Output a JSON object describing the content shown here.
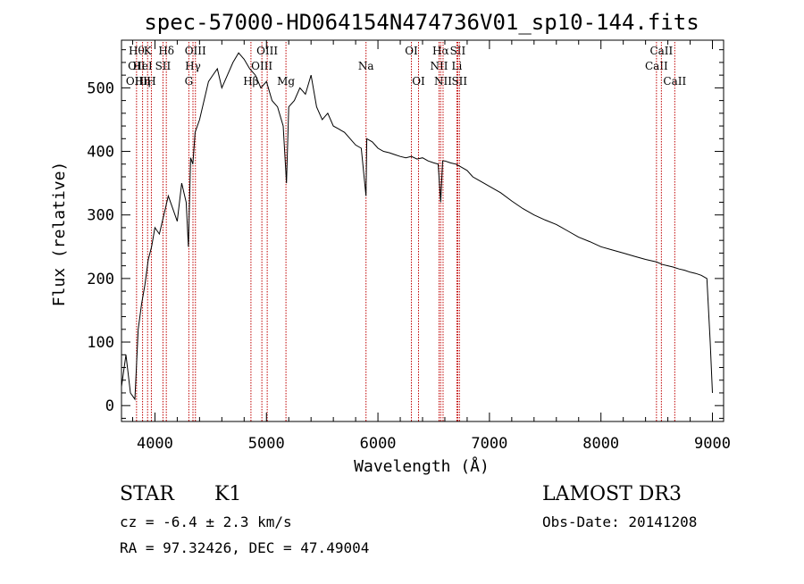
{
  "chart_data": {
    "type": "line",
    "title": "spec-57000-HD064154N474736V01_sp10-144.fits",
    "xlabel": "Wavelength (Å)",
    "ylabel": "Flux (relative)",
    "xlim": [
      3700,
      9100
    ],
    "ylim": [
      -25,
      575
    ],
    "x_ticks": [
      4000,
      5000,
      6000,
      7000,
      8000,
      9000
    ],
    "y_ticks": [
      0,
      100,
      200,
      300,
      400,
      500
    ],
    "x_tick_labels": [
      "4000",
      "5000",
      "6000",
      "7000",
      "8000",
      "9000"
    ],
    "y_tick_labels": [
      "0",
      "100",
      "200",
      "300",
      "400",
      "500"
    ],
    "series": [
      {
        "name": "flux",
        "x": [
          3700,
          3740,
          3780,
          3820,
          3850,
          3880,
          3910,
          3940,
          3970,
          4000,
          4040,
          4080,
          4120,
          4160,
          4200,
          4240,
          4280,
          4300,
          4320,
          4340,
          4360,
          4400,
          4440,
          4480,
          4520,
          4560,
          4600,
          4650,
          4700,
          4750,
          4800,
          4850,
          4900,
          4950,
          5000,
          5050,
          5100,
          5150,
          5180,
          5200,
          5250,
          5300,
          5350,
          5400,
          5450,
          5500,
          5550,
          5600,
          5650,
          5700,
          5750,
          5800,
          5850,
          5893,
          5900,
          5950,
          6000,
          6050,
          6100,
          6150,
          6200,
          6250,
          6300,
          6350,
          6400,
          6450,
          6500,
          6540,
          6563,
          6580,
          6600,
          6650,
          6700,
          6750,
          6800,
          6850,
          6900,
          6950,
          7000,
          7100,
          7200,
          7300,
          7400,
          7500,
          7600,
          7700,
          7800,
          7900,
          8000,
          8100,
          8200,
          8300,
          8400,
          8500,
          8550,
          8600,
          8650,
          8700,
          8750,
          8800,
          8850,
          8900,
          8950,
          8980,
          9000
        ],
        "values": [
          30,
          80,
          20,
          10,
          120,
          160,
          190,
          230,
          250,
          280,
          270,
          300,
          330,
          310,
          290,
          350,
          320,
          250,
          390,
          380,
          430,
          450,
          480,
          510,
          520,
          530,
          500,
          520,
          540,
          555,
          545,
          530,
          520,
          500,
          510,
          480,
          470,
          440,
          350,
          470,
          480,
          500,
          490,
          520,
          470,
          450,
          460,
          440,
          435,
          430,
          420,
          410,
          405,
          330,
          420,
          415,
          405,
          400,
          398,
          395,
          392,
          390,
          392,
          388,
          390,
          385,
          382,
          380,
          320,
          385,
          385,
          382,
          380,
          375,
          370,
          360,
          355,
          350,
          345,
          335,
          322,
          310,
          300,
          292,
          285,
          275,
          265,
          258,
          250,
          245,
          240,
          235,
          230,
          226,
          222,
          220,
          218,
          215,
          213,
          210,
          208,
          205,
          200,
          100,
          20
        ]
      }
    ],
    "reference_lines": [
      {
        "wavelength": 3835,
        "labels": [
          "Hθ",
          "OII",
          "OIII"
        ],
        "rows": [
          1,
          2,
          3
        ]
      },
      {
        "wavelength": 3889,
        "labels": [
          "HeI",
          "Hη"
        ],
        "rows": [
          2,
          3
        ]
      },
      {
        "wavelength": 3934,
        "labels": [
          "K"
        ],
        "rows": [
          1
        ]
      },
      {
        "wavelength": 3968,
        "labels": [
          "H"
        ],
        "rows": [
          3
        ]
      },
      {
        "wavelength": 4072,
        "labels": [
          "SII"
        ],
        "rows": [
          2
        ]
      },
      {
        "wavelength": 4102,
        "labels": [
          "Hδ"
        ],
        "rows": [
          1
        ]
      },
      {
        "wavelength": 4304,
        "labels": [
          "G"
        ],
        "rows": [
          3
        ]
      },
      {
        "wavelength": 4341,
        "labels": [
          "Hγ"
        ],
        "rows": [
          2
        ]
      },
      {
        "wavelength": 4363,
        "labels": [
          "OIII"
        ],
        "rows": [
          1
        ]
      },
      {
        "wavelength": 4861,
        "labels": [
          "Hβ"
        ],
        "rows": [
          3
        ]
      },
      {
        "wavelength": 4959,
        "labels": [
          "OIII"
        ],
        "rows": [
          2
        ]
      },
      {
        "wavelength": 5007,
        "labels": [
          "OIII"
        ],
        "rows": [
          1
        ]
      },
      {
        "wavelength": 5175,
        "labels": [
          "Mg"
        ],
        "rows": [
          3
        ]
      },
      {
        "wavelength": 5893,
        "labels": [
          "Na"
        ],
        "rows": [
          2
        ]
      },
      {
        "wavelength": 6300,
        "labels": [
          "OI"
        ],
        "rows": [
          1
        ]
      },
      {
        "wavelength": 6364,
        "labels": [
          "OI"
        ],
        "rows": [
          3
        ]
      },
      {
        "wavelength": 6548,
        "labels": [
          "NII"
        ],
        "rows": [
          2
        ]
      },
      {
        "wavelength": 6563,
        "labels": [
          "Hα"
        ],
        "rows": [
          1
        ]
      },
      {
        "wavelength": 6584,
        "labels": [
          "NII"
        ],
        "rows": [
          3
        ]
      },
      {
        "wavelength": 6708,
        "labels": [
          "Li"
        ],
        "rows": [
          2
        ]
      },
      {
        "wavelength": 6716,
        "labels": [
          "SII"
        ],
        "rows": [
          1
        ]
      },
      {
        "wavelength": 6731,
        "labels": [
          "SII"
        ],
        "rows": [
          3
        ]
      },
      {
        "wavelength": 8498,
        "labels": [
          "CaII"
        ],
        "rows": [
          2
        ]
      },
      {
        "wavelength": 8542,
        "labels": [
          "CaII"
        ],
        "rows": [
          1
        ]
      },
      {
        "wavelength": 8662,
        "labels": [
          "CaII"
        ],
        "rows": [
          3
        ]
      }
    ],
    "line_color": "#000000",
    "reference_line_color": "#c00000"
  },
  "info": {
    "object_class": "STAR",
    "subclass": "K1",
    "survey": "LAMOST DR3",
    "cz": "cz = -6.4 ± 2.3 km/s",
    "obs_date": "Obs-Date: 20141208",
    "coords": "RA =  97.32426, DEC =  47.49004"
  }
}
